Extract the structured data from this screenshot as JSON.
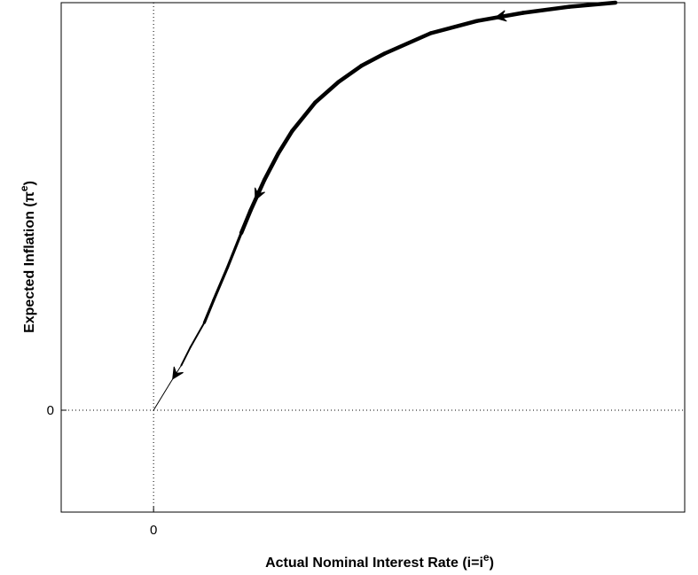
{
  "chart_data": {
    "type": "line",
    "title": "",
    "xlabel": "Actual Nominal Interest Rate (i=i",
    "xlabel_superscript": "e",
    "xlabel_close": ")",
    "ylabel_before": "Expected Inflation (",
    "ylabel_symbol": "π",
    "ylabel_superscript": "e",
    "ylabel_close": ")",
    "x_ticks": [
      0
    ],
    "y_ticks": [
      0
    ],
    "x_tick_labels": [
      "0"
    ],
    "y_tick_labels": [
      "0"
    ],
    "xlim": [
      -0.2,
      1.15
    ],
    "ylim": [
      -0.25,
      1.0
    ],
    "grid": "zero reference lines (dotted)",
    "arrow_direction": "toward origin",
    "series": [
      {
        "x": [
          1.0,
          0.9,
          0.8,
          0.7,
          0.6,
          0.5,
          0.45,
          0.4,
          0.35,
          0.3,
          0.27,
          0.24,
          0.21,
          0.19,
          0.16,
          0.13,
          0.11,
          0.08,
          0.06,
          0.035,
          0.0
        ],
        "y": [
          1.0,
          0.99,
          0.975,
          0.955,
          0.925,
          0.875,
          0.845,
          0.805,
          0.755,
          0.685,
          0.63,
          0.565,
          0.49,
          0.435,
          0.35,
          0.27,
          0.215,
          0.155,
          0.11,
          0.065,
          0.0
        ]
      }
    ]
  }
}
